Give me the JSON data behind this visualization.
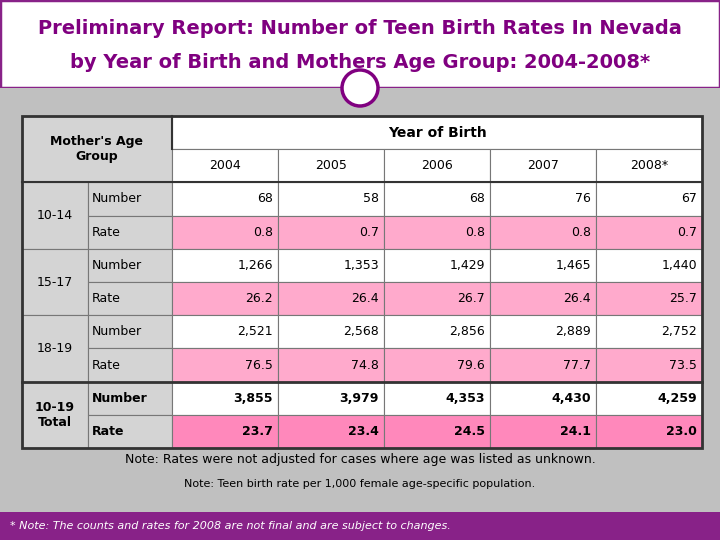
{
  "title_line1": "Preliminary Report: Number of Teen Birth Rates In Nevada",
  "title_line2": "by Year of Birth and Mothers Age Group: 2004-2008*",
  "title_color": "#800080",
  "bg_color": "#c0c0c0",
  "footer_bg": "#882288",
  "footer_text": "* Note: The counts and rates for 2008 are not final and are subject to changes.",
  "footer_text_color": "#ffffff",
  "years": [
    "2004",
    "2005",
    "2006",
    "2007",
    "2008*"
  ],
  "rows": [
    {
      "age": "10-14",
      "type": "Number",
      "values": [
        "68",
        "58",
        "68",
        "76",
        "67"
      ],
      "bg": "#ffffff",
      "bold": false
    },
    {
      "age": "10-14",
      "type": "Rate",
      "values": [
        "0.8",
        "0.7",
        "0.8",
        "0.8",
        "0.7"
      ],
      "bg": "#ffaacc",
      "bold": false
    },
    {
      "age": "15-17",
      "type": "Number",
      "values": [
        "1,266",
        "1,353",
        "1,429",
        "1,465",
        "1,440"
      ],
      "bg": "#ffffff",
      "bold": false
    },
    {
      "age": "15-17",
      "type": "Rate",
      "values": [
        "26.2",
        "26.4",
        "26.7",
        "26.4",
        "25.7"
      ],
      "bg": "#ffaacc",
      "bold": false
    },
    {
      "age": "18-19",
      "type": "Number",
      "values": [
        "2,521",
        "2,568",
        "2,856",
        "2,889",
        "2,752"
      ],
      "bg": "#ffffff",
      "bold": false
    },
    {
      "age": "18-19",
      "type": "Rate",
      "values": [
        "76.5",
        "74.8",
        "79.6",
        "77.7",
        "73.5"
      ],
      "bg": "#ffaacc",
      "bold": false
    },
    {
      "age": "10-19",
      "age2": "Total",
      "type": "Number",
      "values": [
        "3,855",
        "3,979",
        "4,353",
        "4,430",
        "4,259"
      ],
      "bg": "#ffffff",
      "bold": true
    },
    {
      "age": "10-19",
      "age2": "Total",
      "type": "Rate",
      "values": [
        "23.7",
        "23.4",
        "24.5",
        "24.1",
        "23.0"
      ],
      "bg": "#ff88bb",
      "bold": true
    }
  ],
  "note1": "Note: Teen birth rate per 1,000 female age-specific population.",
  "note2": "Note: Rates were not adjusted for cases where age was listed as unknown.",
  "circle_color": "#800080",
  "circle_fill": "#ffffff",
  "age_bg": "#d4d4d4",
  "age_bold_bg": "#d4d4d4",
  "type_bg": "#d4d4d4",
  "header_bg": "#ffffff",
  "header_bold_bg": "#d4d4d4"
}
